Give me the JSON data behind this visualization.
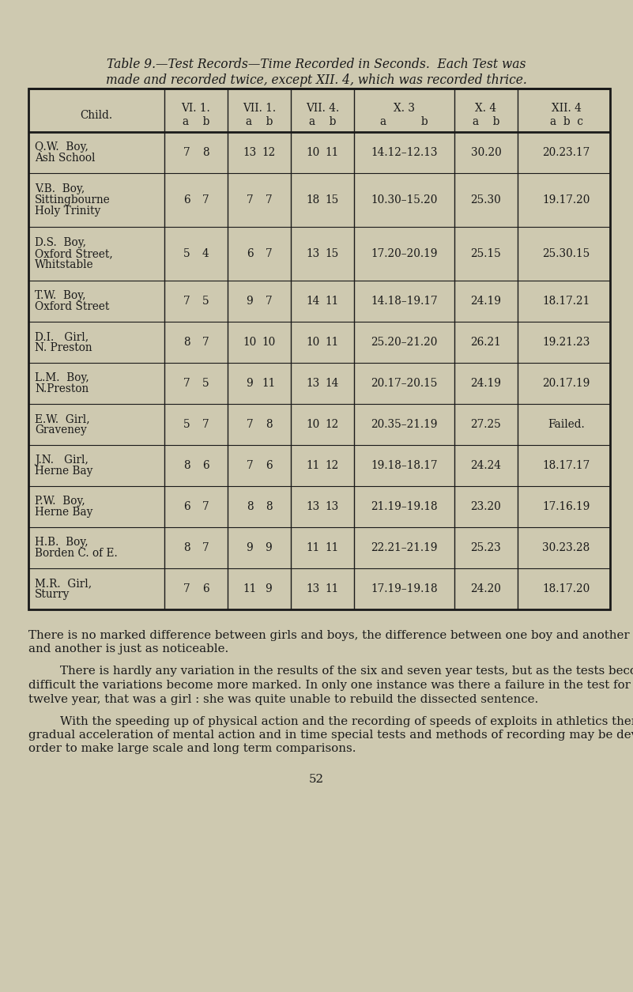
{
  "bg_color": "#cec9b0",
  "title_line1": "Table 9.—Test Records—Time Recorded in Seconds.  Each Test was",
  "title_line2": "made and recorded twice, except XII. 4, which was recorded thrice.",
  "rows": [
    [
      "Q.W.  Boy,",
      "Ash School",
      "",
      "7",
      "8",
      "13",
      "12",
      "10",
      "11",
      "14.12–12.13",
      "30.20",
      "20.23.17"
    ],
    [
      "V.B.  Boy,",
      "Sittingbourne",
      "Holy Trinity",
      "6",
      "7",
      "7",
      "7",
      "18",
      "15",
      "10.30–15.20",
      "25.30",
      "19.17.20"
    ],
    [
      "D.S.  Boy,",
      "Oxford Street,",
      "Whitstable",
      "5",
      "4",
      "6",
      "7",
      "13",
      "15",
      "17.20–20.19",
      "25.15",
      "25.30.15"
    ],
    [
      "T.W.  Boy,",
      "Oxford Street",
      "",
      "7",
      "5",
      "9",
      "7",
      "14",
      "11",
      "14.18–19.17",
      "24.19",
      "18.17.21"
    ],
    [
      "D.I.   Girl,",
      "N. Preston",
      "",
      "8",
      "7",
      "10",
      "10",
      "10",
      "11",
      "25.20–21.20",
      "26.21",
      "19.21.23"
    ],
    [
      "L.M.  Boy,",
      "N.Preston",
      "",
      "7",
      "5",
      "9",
      "11",
      "13",
      "14",
      "20.17–20.15",
      "24.19",
      "20.17.19"
    ],
    [
      "E.W.  Girl,",
      "Graveney",
      "",
      "5",
      "7",
      "7",
      "8",
      "10",
      "12",
      "20.35–21.19",
      "27.25",
      "Failed."
    ],
    [
      "J.N.   Girl,",
      "Herne Bay",
      "",
      "8",
      "6",
      "7",
      "6",
      "11",
      "12",
      "19.18–18.17",
      "24.24",
      "18.17.17"
    ],
    [
      "P.W.  Boy,",
      "Herne Bay",
      "",
      "6",
      "7",
      "8",
      "8",
      "13",
      "13",
      "21.19–19.18",
      "23.20",
      "17.16.19"
    ],
    [
      "H.B.  Boy,",
      "Borden C. of E.",
      "",
      "8",
      "7",
      "9",
      "9",
      "11",
      "11",
      "22.21–21.19",
      "25.23",
      "30.23.28"
    ],
    [
      "M.R.  Girl,",
      "Sturry",
      "",
      "7",
      "6",
      "11",
      "9",
      "13",
      "11",
      "17.19–19.18",
      "24.20",
      "18.17.20"
    ]
  ],
  "para1": "    There is no marked difference between girls and boys, the difference between one boy and another or one girl and another is just as noticeable.",
  "para2": "    There is hardly any variation in the results of the six and seven year tests, but as the tests become more difficult the variations become more marked.  In only one instance was there a failure in the test for the twelve year, that was a girl :  she was quite unable to rebuild the dissected sentence.",
  "para3": "    With the speeding up of physical action and the recording of speeds of exploits in athletics there may be a gradual acceleration of mental action and in time special tests and methods of recording may be devised in order to make large scale and long term comparisons.",
  "page_number": "52",
  "table_border_color": "#1a1a1a",
  "text_color": "#1a1a1a",
  "font_size_title": 11.2,
  "font_size_header": 9.8,
  "font_size_table": 9.8,
  "font_size_body": 10.8
}
